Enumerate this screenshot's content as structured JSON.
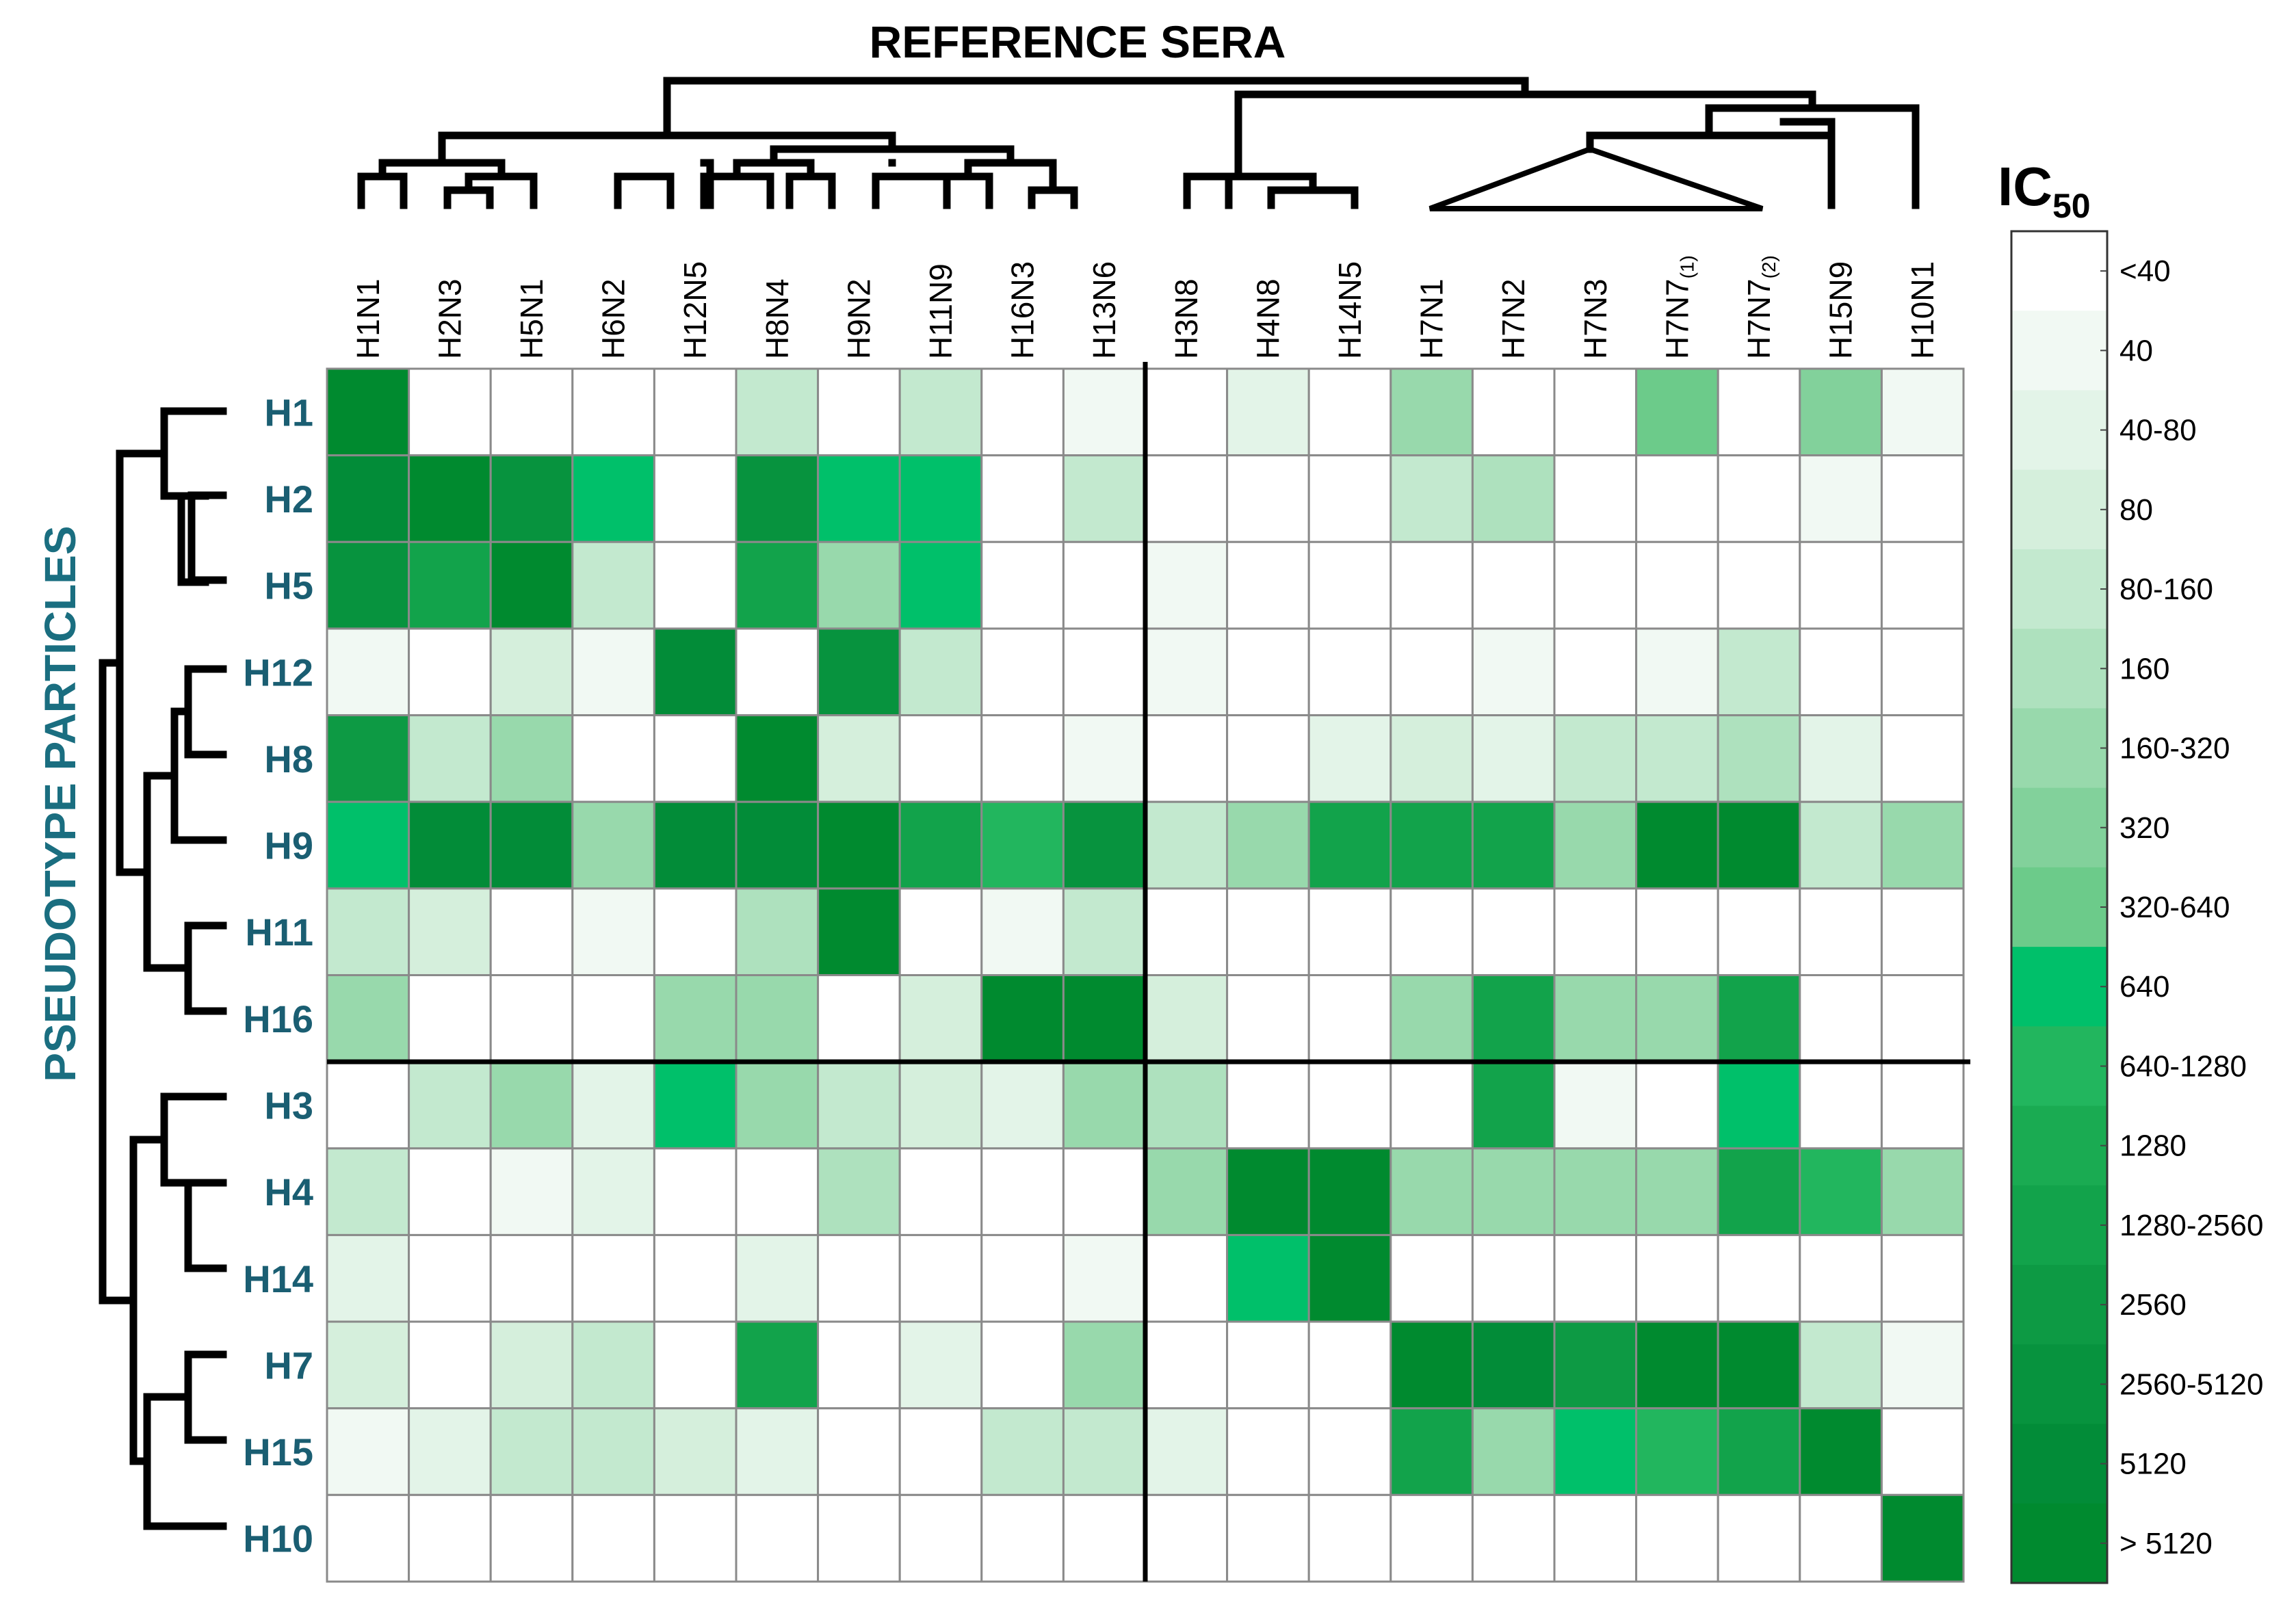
{
  "chart_data": {
    "type": "heatmap",
    "title": "REFERENCE SERA",
    "ylabel": "PSEUDOTYPE PARTICLES",
    "legend_title": "IC",
    "legend_title_sub": "50",
    "columns": [
      "H1N1",
      "H2N3",
      "H5N1",
      "H6N2",
      "H12N5",
      "H8N4",
      "H9N2",
      "H11N9",
      "H16N3",
      "H13N6",
      "H3N8",
      "H4N8",
      "H14N5",
      "H7N1",
      "H7N2",
      "H7N3",
      "H7N7",
      "H7N7",
      "H15N9",
      "H10N1"
    ],
    "column_superscripts": [
      "",
      "",
      "",
      "",
      "",
      "",
      "",
      "",
      "",
      "",
      "",
      "",
      "",
      "",
      "",
      "",
      "(1)",
      "(2)",
      "",
      ""
    ],
    "rows": [
      "H1",
      "H2",
      "H5",
      "H12",
      "H8",
      "H9",
      "H11",
      "H16",
      "H3",
      "H4",
      "H14",
      "H7",
      "H15",
      "H10"
    ],
    "legend_labels": [
      "<40",
      "40",
      "40-80",
      "80",
      "80-160",
      "160",
      "160-320",
      "320",
      "320-640",
      "640",
      "640-1280",
      "1280",
      "1280-2560",
      "2560",
      "2560-5120",
      "5120",
      "> 5120"
    ],
    "legend_colors": [
      "#ffffff",
      "#f1f9f3",
      "#e3f4e8",
      "#d5efdc",
      "#c3e9cf",
      "#aee1be",
      "#98d9ac",
      "#82d19b",
      "#6ccb8a",
      "#00c06a",
      "#22b65e",
      "#1aab52",
      "#12a34b",
      "#0d9a44",
      "#07933e",
      "#028c38",
      "#008a2f"
    ],
    "values": [
      [
        16,
        0,
        0,
        0,
        0,
        4,
        0,
        4,
        0,
        1,
        0,
        2,
        0,
        6,
        0,
        0,
        8,
        0,
        7,
        1
      ],
      [
        15,
        16,
        14,
        9,
        0,
        14,
        9,
        9,
        0,
        4,
        0,
        0,
        0,
        4,
        5,
        0,
        0,
        0,
        1,
        0
      ],
      [
        14,
        12,
        16,
        4,
        0,
        12,
        6,
        9,
        0,
        0,
        1,
        0,
        0,
        0,
        0,
        0,
        0,
        0,
        0,
        0
      ],
      [
        1,
        0,
        3,
        1,
        15,
        0,
        14,
        4,
        0,
        0,
        1,
        0,
        0,
        0,
        1,
        0,
        1,
        4,
        0,
        0
      ],
      [
        13,
        4,
        6,
        0,
        0,
        16,
        3,
        0,
        0,
        1,
        0,
        0,
        2,
        3,
        2,
        4,
        4,
        5,
        2,
        0
      ],
      [
        9,
        15,
        15,
        6,
        15,
        15,
        16,
        12,
        10,
        14,
        4,
        6,
        12,
        12,
        12,
        6,
        16,
        16,
        4,
        6
      ],
      [
        4,
        3,
        0,
        1,
        0,
        5,
        16,
        0,
        1,
        4,
        0,
        0,
        0,
        0,
        0,
        0,
        0,
        0,
        0,
        0
      ],
      [
        6,
        0,
        0,
        0,
        6,
        6,
        0,
        3,
        16,
        16,
        3,
        0,
        0,
        6,
        12,
        6,
        6,
        12,
        0,
        0
      ],
      [
        0,
        4,
        6,
        2,
        9,
        6,
        4,
        3,
        2,
        6,
        5,
        0,
        0,
        0,
        12,
        1,
        0,
        9,
        0,
        0
      ],
      [
        4,
        0,
        1,
        2,
        0,
        0,
        5,
        0,
        0,
        0,
        6,
        16,
        16,
        6,
        6,
        6,
        6,
        12,
        10,
        6
      ],
      [
        2,
        0,
        0,
        0,
        0,
        2,
        0,
        0,
        0,
        1,
        0,
        9,
        16,
        0,
        0,
        0,
        0,
        0,
        0,
        0
      ],
      [
        3,
        0,
        3,
        4,
        0,
        12,
        0,
        2,
        0,
        6,
        0,
        0,
        0,
        16,
        15,
        13,
        16,
        16,
        4,
        1
      ],
      [
        1,
        2,
        4,
        4,
        3,
        2,
        0,
        0,
        4,
        4,
        2,
        0,
        0,
        12,
        6,
        9,
        10,
        12,
        16,
        0
      ],
      [
        0,
        0,
        0,
        0,
        0,
        0,
        0,
        0,
        0,
        0,
        0,
        0,
        0,
        0,
        0,
        0,
        0,
        0,
        0,
        16
      ]
    ],
    "dividers": {
      "after_row": "H16",
      "after_column": "H13N6"
    }
  }
}
